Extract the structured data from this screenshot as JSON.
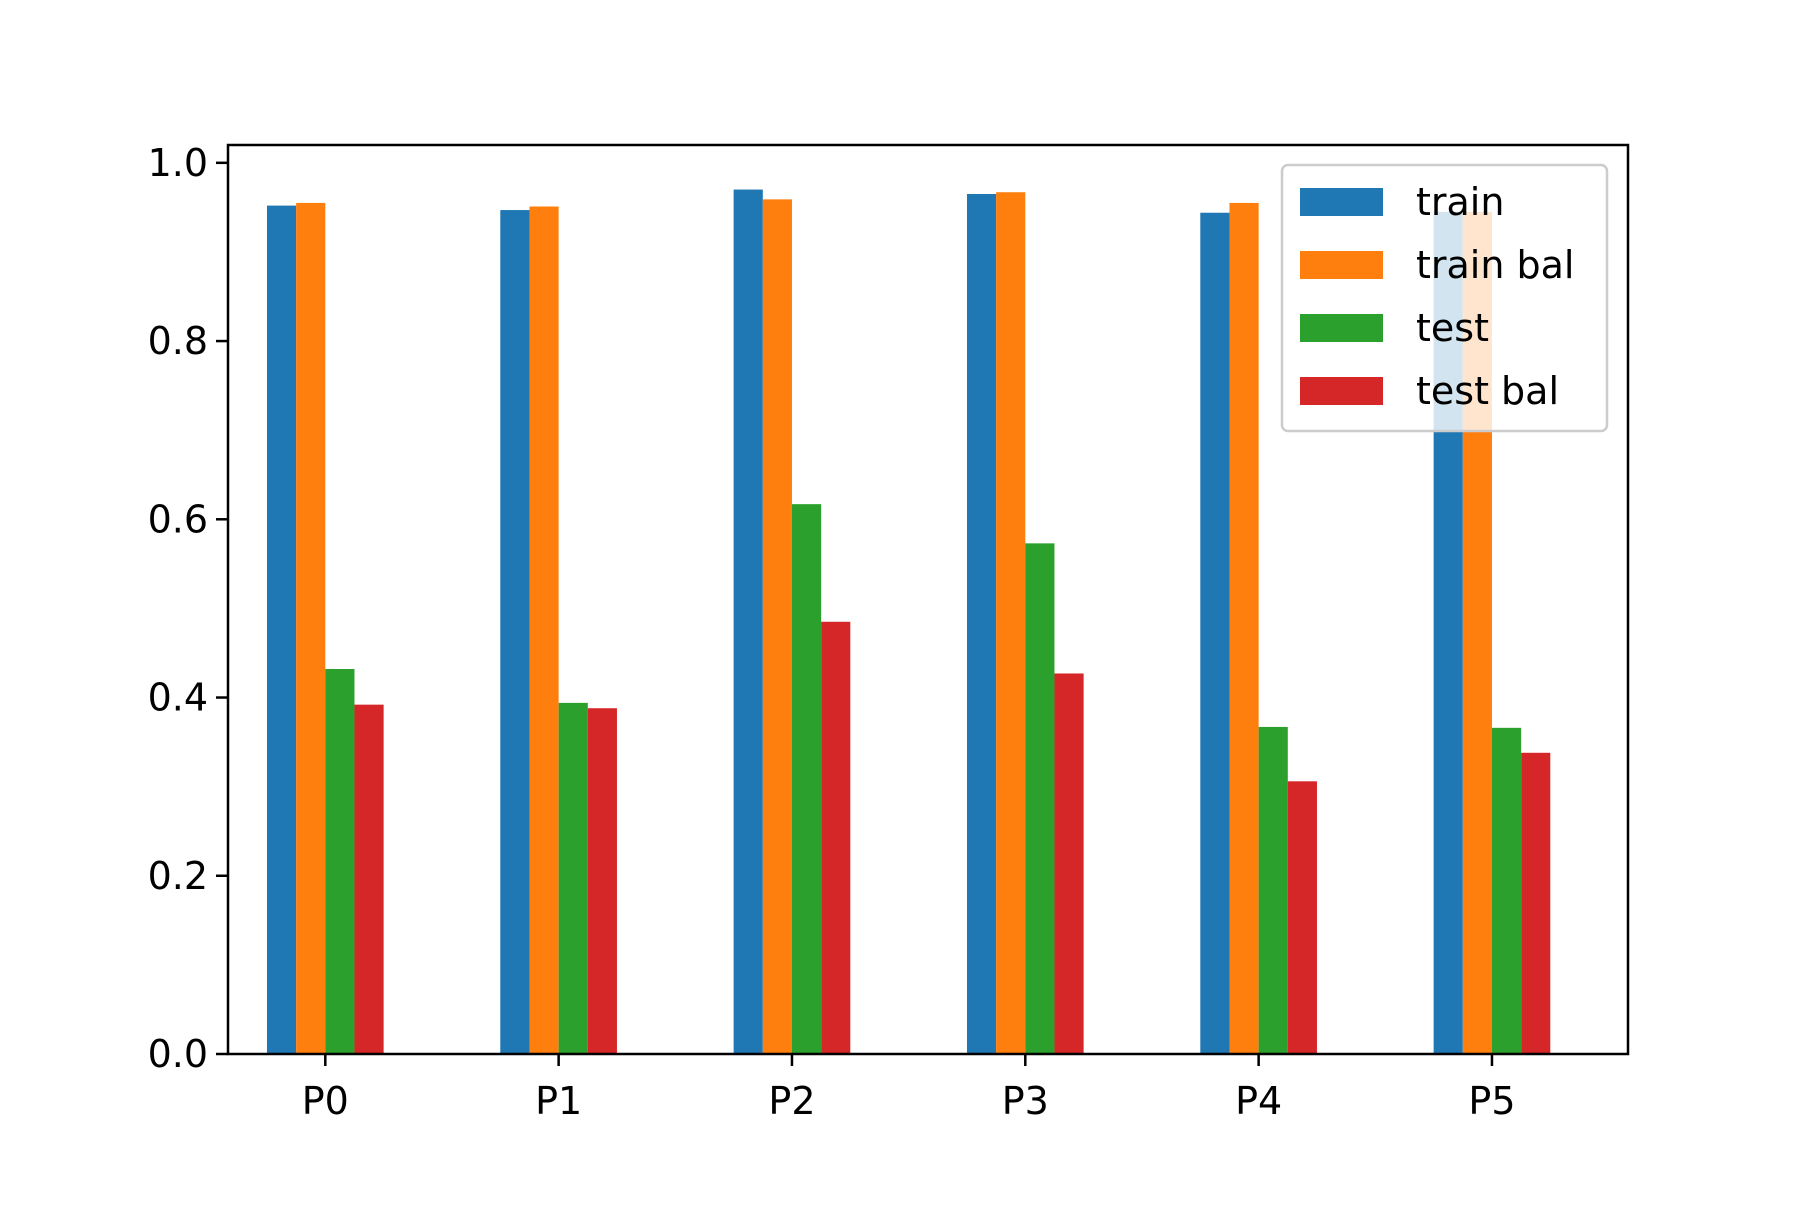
{
  "chart_data": {
    "type": "bar",
    "title": "",
    "xlabel": "",
    "ylabel": "",
    "categories": [
      "P0",
      "P1",
      "P2",
      "P3",
      "P4",
      "P5"
    ],
    "series": [
      {
        "name": "train",
        "color": "#1f77b4",
        "values": [
          0.952,
          0.947,
          0.97,
          0.965,
          0.944,
          0.945
        ]
      },
      {
        "name": "train bal",
        "color": "#ff7f0e",
        "values": [
          0.955,
          0.951,
          0.959,
          0.967,
          0.955,
          0.945
        ]
      },
      {
        "name": "test",
        "color": "#2ca02c",
        "values": [
          0.432,
          0.394,
          0.617,
          0.573,
          0.367,
          0.366
        ]
      },
      {
        "name": "test bal",
        "color": "#d62728",
        "values": [
          0.392,
          0.388,
          0.485,
          0.427,
          0.306,
          0.338
        ]
      }
    ],
    "ylim": [
      0,
      1.02
    ],
    "yticks": [
      "0.0",
      "0.2",
      "0.4",
      "0.6",
      "0.8",
      "1.0"
    ],
    "grid": false,
    "legend_position": "top-right"
  }
}
